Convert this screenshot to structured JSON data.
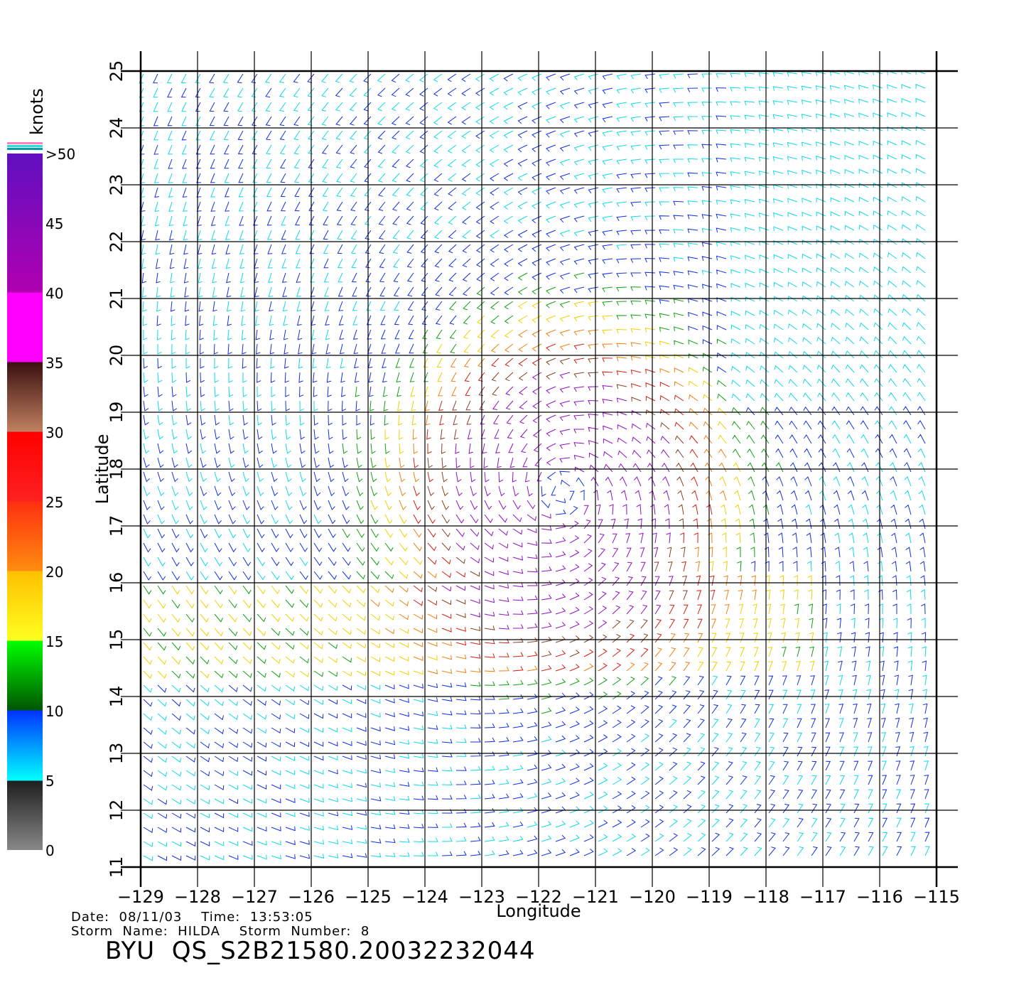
{
  "chart_data": {
    "type": "wind-vector-map",
    "xlabel": "Longitude",
    "ylabel": "Latitude",
    "xlim": [
      -129,
      -115
    ],
    "ylim": [
      11,
      25
    ],
    "x_ticks": [
      "−129",
      "−128",
      "−127",
      "−126",
      "−125",
      "−124",
      "−123",
      "−122",
      "−121",
      "−120",
      "−119",
      "−118",
      "−117",
      "−116",
      "−115"
    ],
    "y_ticks": [
      "11",
      "12",
      "13",
      "14",
      "15",
      "16",
      "17",
      "18",
      "19",
      "20",
      "21",
      "22",
      "23",
      "24",
      "25"
    ],
    "grid": true,
    "storm_center": {
      "lon": -121.6,
      "lat": 17.6
    },
    "colorbar": {
      "title": "knots",
      "labels": [
        "0",
        "5",
        "10",
        "15",
        "20",
        "25",
        "30",
        "35",
        "40",
        "45",
        ">50"
      ],
      "position": "left"
    }
  },
  "footer": {
    "date_line": "Date:  08/11/03    Time:  13:53:05",
    "storm_line": "Storm  Name:  HILDA    Storm  Number:  8",
    "file_name": "BYU  QS_S2B21580.20032232044"
  }
}
